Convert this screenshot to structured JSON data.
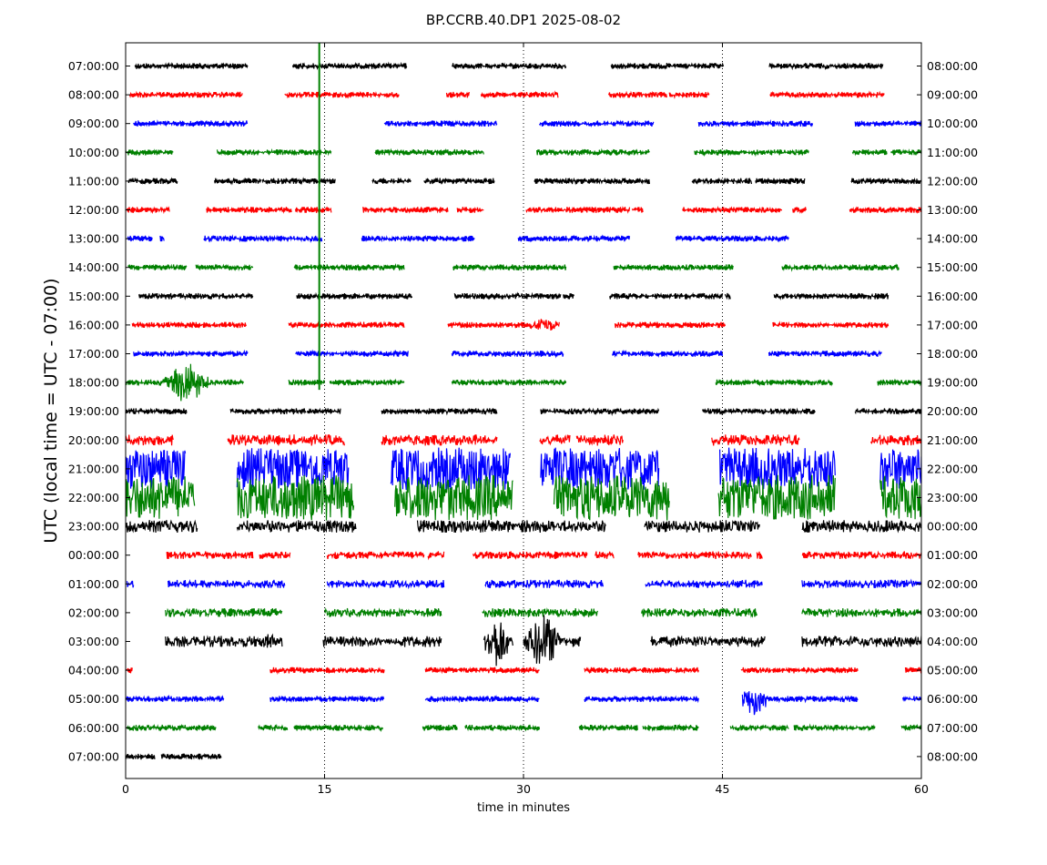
{
  "chart_data": {
    "type": "line",
    "title": "BP.CCRB.40.DP1 2025-08-02",
    "xlabel": "time in minutes",
    "ylabel": "UTC (local time = UTC - 07:00)",
    "xlim": [
      0,
      60
    ],
    "x_ticks": [
      "0",
      "15",
      "30",
      "45",
      "60"
    ],
    "x_tick_values": [
      0,
      15,
      30,
      45,
      60
    ],
    "x_grid_values": [
      15,
      30,
      45
    ],
    "grid": "vertical dotted",
    "row_colors": [
      "#000000",
      "#ff0000",
      "#0000ff",
      "#008000"
    ],
    "left_labels": [
      "07:00:00",
      "08:00:00",
      "09:00:00",
      "10:00:00",
      "11:00:00",
      "12:00:00",
      "13:00:00",
      "14:00:00",
      "15:00:00",
      "16:00:00",
      "17:00:00",
      "18:00:00",
      "19:00:00",
      "20:00:00",
      "21:00:00",
      "22:00:00",
      "23:00:00",
      "00:00:00",
      "01:00:00",
      "02:00:00",
      "03:00:00",
      "04:00:00",
      "05:00:00",
      "06:00:00",
      "07:00:00"
    ],
    "right_labels": [
      "08:00:00",
      "09:00:00",
      "10:00:00",
      "11:00:00",
      "12:00:00",
      "13:00:00",
      "14:00:00",
      "15:00:00",
      "16:00:00",
      "17:00:00",
      "18:00:00",
      "19:00:00",
      "20:00:00",
      "21:00:00",
      "22:00:00",
      "23:00:00",
      "00:00:00",
      "01:00:00",
      "02:00:00",
      "03:00:00",
      "04:00:00",
      "05:00:00",
      "06:00:00",
      "07:00:00",
      "08:00:00"
    ],
    "rows": [
      {
        "segments": [
          [
            0.7,
            9.2
          ],
          [
            12.6,
            21.2
          ],
          [
            24.6,
            33.2
          ],
          [
            36.6,
            45.1
          ],
          [
            48.5,
            57.1
          ]
        ],
        "amp": 0.12,
        "bursts": []
      },
      {
        "segments": [
          [
            0.3,
            8.8
          ],
          [
            12.0,
            20.6
          ],
          [
            24.2,
            25.9
          ],
          [
            26.8,
            32.6
          ],
          [
            36.4,
            40.8
          ],
          [
            41.0,
            44.0
          ],
          [
            48.6,
            57.2
          ]
        ],
        "amp": 0.12,
        "bursts": []
      },
      {
        "segments": [
          [
            0.6,
            9.2
          ],
          [
            19.5,
            28.0
          ],
          [
            31.2,
            39.8
          ],
          [
            43.2,
            51.8
          ],
          [
            55.0,
            60.0
          ]
        ],
        "amp": 0.12,
        "bursts": []
      },
      {
        "segments": [
          [
            0.0,
            3.6
          ],
          [
            6.9,
            15.5
          ],
          [
            18.8,
            27.0
          ],
          [
            31.0,
            39.5
          ],
          [
            42.9,
            51.5
          ],
          [
            54.8,
            57.4
          ],
          [
            57.7,
            60.0
          ]
        ],
        "amp": 0.12,
        "bursts": []
      },
      {
        "segments": [
          [
            0.2,
            3.9
          ],
          [
            6.7,
            10.2
          ],
          [
            10.3,
            15.8
          ],
          [
            18.6,
            21.5
          ],
          [
            22.5,
            27.8
          ],
          [
            30.8,
            39.5
          ],
          [
            42.7,
            47.2
          ],
          [
            47.5,
            51.2
          ],
          [
            54.7,
            60.0
          ]
        ],
        "amp": 0.12,
        "bursts": []
      },
      {
        "segments": [
          [
            0.1,
            3.3
          ],
          [
            6.1,
            12.5
          ],
          [
            12.8,
            15.5
          ],
          [
            17.9,
            24.3
          ],
          [
            25.0,
            27.0
          ],
          [
            30.2,
            38.0
          ],
          [
            38.2,
            39.0
          ],
          [
            42.0,
            49.5
          ],
          [
            50.3,
            51.3
          ],
          [
            54.6,
            60.0
          ]
        ],
        "amp": 0.12,
        "bursts": []
      },
      {
        "segments": [
          [
            0.1,
            2.0
          ],
          [
            2.6,
            2.9
          ],
          [
            5.9,
            14.8
          ],
          [
            17.8,
            26.3
          ],
          [
            29.6,
            38.0
          ],
          [
            41.5,
            50.0
          ]
        ],
        "amp": 0.12,
        "bursts": []
      },
      {
        "segments": [
          [
            0.2,
            4.6
          ],
          [
            5.3,
            9.6
          ],
          [
            12.7,
            21.0
          ],
          [
            24.7,
            33.2
          ],
          [
            36.8,
            45.8
          ],
          [
            49.5,
            58.3
          ]
        ],
        "amp": 0.12,
        "bursts": []
      },
      {
        "segments": [
          [
            1.0,
            9.6
          ],
          [
            12.9,
            21.6
          ],
          [
            24.8,
            32.8
          ],
          [
            33.0,
            33.8
          ],
          [
            36.5,
            45.0
          ],
          [
            45.2,
            45.6
          ],
          [
            48.9,
            57.5
          ]
        ],
        "amp": 0.12,
        "bursts": []
      },
      {
        "segments": [
          [
            0.5,
            9.1
          ],
          [
            12.3,
            21.0
          ],
          [
            24.3,
            32.7
          ],
          [
            36.9,
            45.2
          ],
          [
            48.8,
            57.5
          ]
        ],
        "amp": 0.12,
        "bursts": [
          [
            31.5,
            0.9,
            0.55
          ]
        ]
      },
      {
        "segments": [
          [
            0.6,
            9.2
          ],
          [
            12.8,
            21.3
          ],
          [
            24.6,
            33.0
          ],
          [
            36.7,
            45.0
          ],
          [
            48.5,
            57.0
          ]
        ],
        "amp": 0.12,
        "bursts": []
      },
      {
        "segments": [
          [
            0.0,
            8.9
          ],
          [
            12.3,
            15.0
          ],
          [
            15.4,
            21.0
          ],
          [
            24.6,
            33.2
          ],
          [
            44.5,
            53.3
          ],
          [
            56.7,
            60.0
          ]
        ],
        "amp": 0.12,
        "bursts": [
          [
            4.6,
            1.3,
            1.4
          ]
        ]
      },
      {
        "segments": [
          [
            0.0,
            4.6
          ],
          [
            7.9,
            13.6
          ],
          [
            13.7,
            16.2
          ],
          [
            19.3,
            28.0
          ],
          [
            31.3,
            40.2
          ],
          [
            43.5,
            52.0
          ],
          [
            55.0,
            60.0
          ]
        ],
        "amp": 0.12,
        "bursts": []
      },
      {
        "segments": [
          [
            0.0,
            3.6
          ],
          [
            7.7,
            12.0
          ],
          [
            12.1,
            16.5
          ],
          [
            19.3,
            28.0
          ],
          [
            31.2,
            33.5
          ],
          [
            34.0,
            37.5
          ],
          [
            44.2,
            50.8
          ],
          [
            56.2,
            60.0
          ]
        ],
        "amp": 0.3,
        "bursts": []
      },
      {
        "segments": [
          [
            0.0,
            4.5
          ],
          [
            8.4,
            16.8
          ],
          [
            20.0,
            29.0
          ],
          [
            31.3,
            40.2
          ],
          [
            44.8,
            53.5
          ],
          [
            56.9,
            60.0
          ]
        ],
        "amp": 1.4,
        "bursts": []
      },
      {
        "segments": [
          [
            0.0,
            5.2
          ],
          [
            8.4,
            17.2
          ],
          [
            20.3,
            29.2
          ],
          [
            32.3,
            41.0
          ],
          [
            44.7,
            53.5
          ],
          [
            56.9,
            60.0
          ]
        ],
        "amp": 1.5,
        "bursts": []
      },
      {
        "segments": [
          [
            0.0,
            5.4
          ],
          [
            8.4,
            17.4
          ],
          [
            22.0,
            28.0
          ],
          [
            27.6,
            36.2
          ],
          [
            39.1,
            47.8
          ],
          [
            51.0,
            60.0
          ]
        ],
        "amp": 0.35,
        "bursts": []
      },
      {
        "segments": [
          [
            3.1,
            9.6
          ],
          [
            10.1,
            12.4
          ],
          [
            15.2,
            22.5
          ],
          [
            22.8,
            24.0
          ],
          [
            26.2,
            34.8
          ],
          [
            35.4,
            36.8
          ],
          [
            38.6,
            47.2
          ],
          [
            47.6,
            48.0
          ],
          [
            51.0,
            60.0
          ]
        ],
        "amp": 0.18,
        "bursts": []
      },
      {
        "segments": [
          [
            0.1,
            0.6
          ],
          [
            3.2,
            12.0
          ],
          [
            15.2,
            24.0
          ],
          [
            27.1,
            36.0
          ],
          [
            39.2,
            48.0
          ],
          [
            51.0,
            60.0
          ]
        ],
        "amp": 0.2,
        "bursts": []
      },
      {
        "segments": [
          [
            3.0,
            11.8
          ],
          [
            15.0,
            23.8
          ],
          [
            26.9,
            35.6
          ],
          [
            38.9,
            47.6
          ],
          [
            51.0,
            60.0
          ]
        ],
        "amp": 0.22,
        "bursts": []
      },
      {
        "segments": [
          [
            3.0,
            11.8
          ],
          [
            14.9,
            23.8
          ],
          [
            27.0,
            29.2
          ],
          [
            30.0,
            34.3
          ],
          [
            39.6,
            48.2
          ],
          [
            51.0,
            60.0
          ]
        ],
        "amp": 0.3,
        "bursts": [
          [
            11.0,
            0.7,
            0.5
          ],
          [
            28.0,
            0.8,
            1.9
          ],
          [
            31.5,
            1.2,
            1.9
          ]
        ]
      },
      {
        "segments": [
          [
            0.0,
            0.5
          ],
          [
            10.9,
            19.5
          ],
          [
            22.6,
            31.2
          ],
          [
            34.6,
            43.2
          ],
          [
            46.4,
            55.2
          ],
          [
            58.8,
            60.0
          ]
        ],
        "amp": 0.12,
        "bursts": []
      },
      {
        "segments": [
          [
            0.0,
            7.4
          ],
          [
            10.9,
            19.5
          ],
          [
            22.6,
            31.2
          ],
          [
            34.6,
            43.2
          ],
          [
            46.5,
            55.2
          ],
          [
            58.6,
            60.0
          ]
        ],
        "amp": 0.12,
        "bursts": [
          [
            47.4,
            1.0,
            1.1
          ]
        ]
      },
      {
        "segments": [
          [
            0.1,
            6.8
          ],
          [
            10.0,
            12.2
          ],
          [
            12.7,
            19.4
          ],
          [
            22.4,
            25.0
          ],
          [
            25.6,
            31.2
          ],
          [
            34.2,
            38.6
          ],
          [
            39.0,
            43.2
          ],
          [
            45.6,
            50.0
          ],
          [
            50.4,
            56.5
          ],
          [
            58.5,
            60.0
          ]
        ],
        "amp": 0.12,
        "bursts": []
      },
      {
        "segments": [
          [
            0.0,
            2.2
          ],
          [
            2.7,
            7.2
          ]
        ],
        "amp": 0.12,
        "bursts": []
      }
    ],
    "spike": {
      "x": 14.6,
      "color": "#008000",
      "from_row": 0,
      "to_row": 11
    },
    "colored_trace_colors": {
      "blue_tail_start_row": 13
    }
  }
}
